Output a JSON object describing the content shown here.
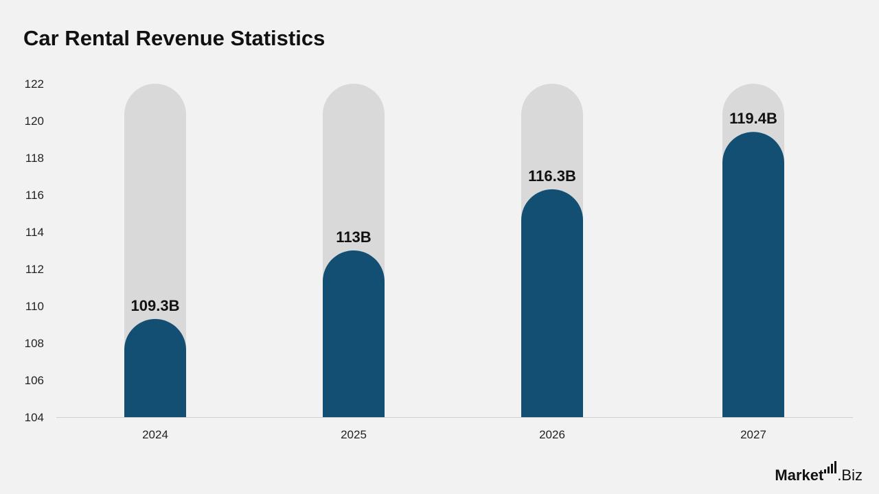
{
  "title": "Car Rental Revenue Statistics",
  "logo": {
    "name": "Market",
    "suffix": ".Biz"
  },
  "colors": {
    "bar": "#124f73",
    "track": "#d9d9d9",
    "background": "#f2f2f2",
    "axis": "#d0d0d0"
  },
  "chart_data": {
    "type": "bar",
    "categories": [
      "2024",
      "2025",
      "2026",
      "2027"
    ],
    "values": [
      109.3,
      113,
      116.3,
      119.4
    ],
    "value_labels": [
      "109.3B",
      "113B",
      "116.3B",
      "119.4B"
    ],
    "ylim": [
      104,
      122
    ],
    "yticks": [
      104,
      106,
      108,
      110,
      112,
      114,
      116,
      118,
      120,
      122
    ],
    "grid": false,
    "xlabel": "",
    "ylabel": ""
  }
}
